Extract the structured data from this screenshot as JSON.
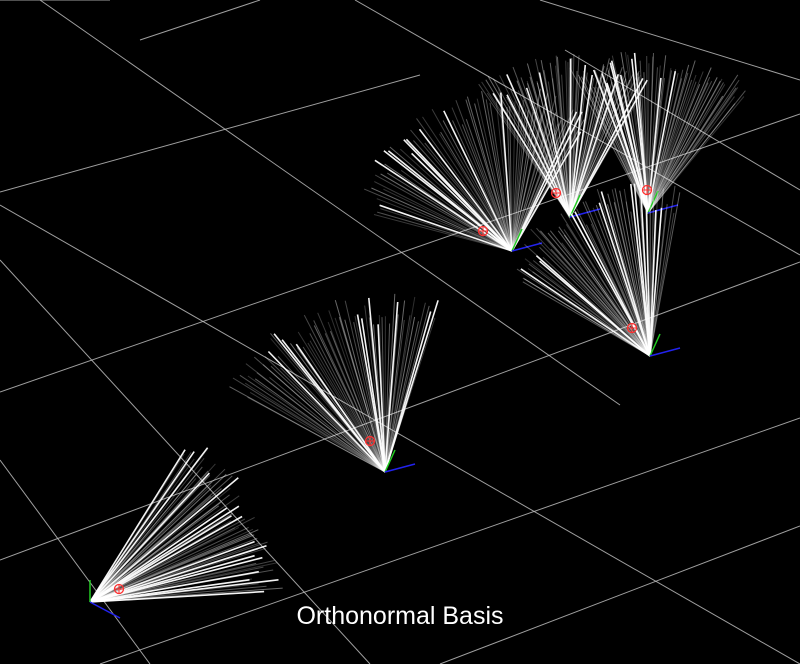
{
  "title": "Orthonormal Basis",
  "colors": {
    "background": "#000000",
    "grid": "#bbbbbb",
    "rays": "#ffffff",
    "axis_y": "#22cc22",
    "axis_z": "#2222ee",
    "marker": "#ff3030"
  },
  "icons": {
    "fan": "ray-fan-icon",
    "marker": "red-circle-cross-icon",
    "axes": "basis-axes-icon"
  }
}
